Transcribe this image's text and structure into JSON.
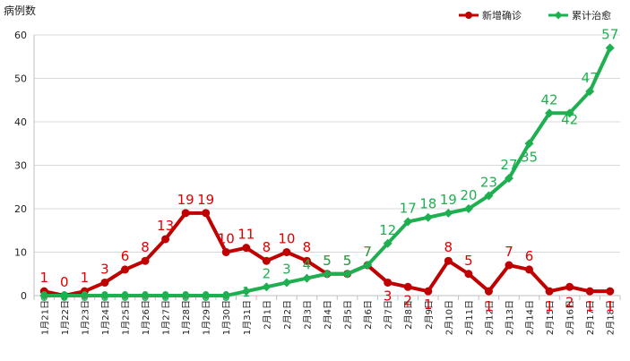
{
  "chart_data": {
    "type": "line",
    "title": "",
    "xlabel": "",
    "ylabel": "病例数",
    "ylim": [
      0,
      60
    ],
    "yticks": [
      0,
      10,
      20,
      30,
      40,
      50,
      60
    ],
    "grid": "horizontal",
    "legend_position": "top-right",
    "categories": [
      "1月21日",
      "1月22日",
      "1月23日",
      "1月24日",
      "1月25日",
      "1月26日",
      "1月27日",
      "1月28日",
      "1月29日",
      "1月30日",
      "1月31日",
      "2月1日",
      "2月2日",
      "2月3日",
      "2月4日",
      "2月5日",
      "2月6日",
      "2月7日",
      "2月8日",
      "2月9日",
      "2月10日",
      "2月11日",
      "2月12日",
      "2月13日",
      "2月14日",
      "2月15日",
      "2月16日",
      "2月17日",
      "2月18日"
    ],
    "series": [
      {
        "name": "新增确诊",
        "color": "#c00000",
        "label_color": "#e00000",
        "marker": "circle",
        "values": [
          1,
          0,
          1,
          3,
          6,
          8,
          13,
          19,
          19,
          10,
          11,
          8,
          10,
          8,
          5,
          5,
          7,
          3,
          2,
          1,
          8,
          5,
          1,
          7,
          6,
          1,
          2,
          1,
          1
        ]
      },
      {
        "name": "累计治愈",
        "color": "#1eb050",
        "label_color": "#1eb050",
        "marker": "diamond",
        "values": [
          0,
          0,
          0,
          0,
          0,
          0,
          0,
          0,
          0,
          0,
          1,
          2,
          3,
          4,
          5,
          5,
          7,
          12,
          17,
          18,
          19,
          20,
          23,
          27,
          35,
          42,
          42,
          47,
          57
        ]
      }
    ]
  }
}
